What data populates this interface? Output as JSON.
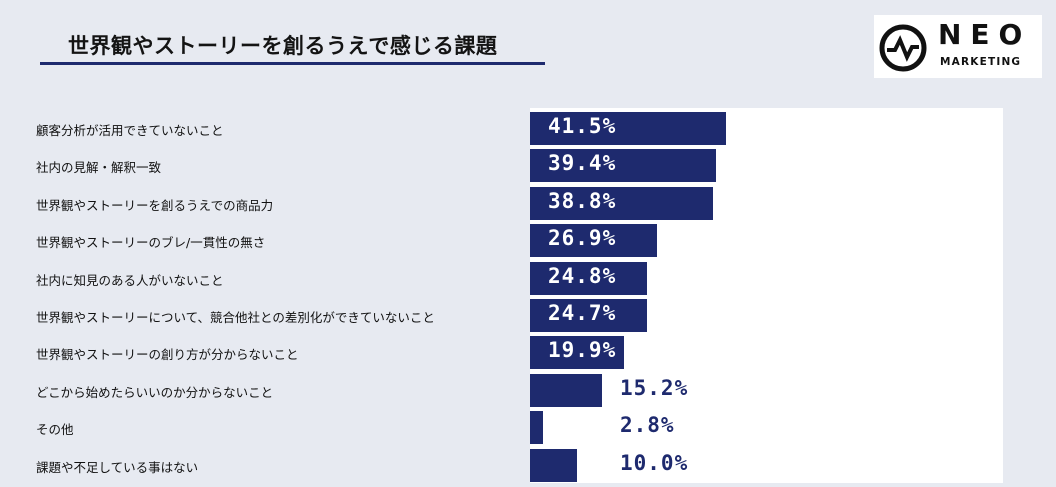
{
  "title": "世界観やストーリーを創るうえで感じる課題",
  "logo": {
    "name": "NEO",
    "sub": "MARKETING"
  },
  "colors": {
    "bar": "#1e2a6e",
    "label_inside": "#ffffff",
    "label_outside": "#1e2a6e"
  },
  "chart_data": {
    "type": "bar",
    "orientation": "horizontal",
    "title": "世界観やストーリーを創るうえで感じる課題",
    "categories": [
      "顧客分析が活用できていないこと",
      "社内の見解・解釈一致",
      "世界観やストーリーを創るうえでの商品力",
      "世界観やストーリーのブレ/一貫性の無さ",
      "社内に知見のある人がいないこと",
      "世界観やストーリーについて、競合他社との差別化ができていないこと",
      "世界観やストーリーの創り方が分からないこと",
      "どこから始めたらいいのか分からないこと",
      "その他",
      "課題や不足している事はない"
    ],
    "values": [
      41.5,
      39.4,
      38.8,
      26.9,
      24.8,
      24.7,
      19.9,
      15.2,
      2.8,
      10.0
    ],
    "value_labels": [
      "41.5%",
      "39.4%",
      "38.8%",
      "26.9%",
      "24.8%",
      "24.7%",
      "19.9%",
      "15.2%",
      "2.8%",
      "10.0%"
    ],
    "unit": "%",
    "xlim": [
      0,
      100
    ],
    "grid": false,
    "legend": "none"
  }
}
